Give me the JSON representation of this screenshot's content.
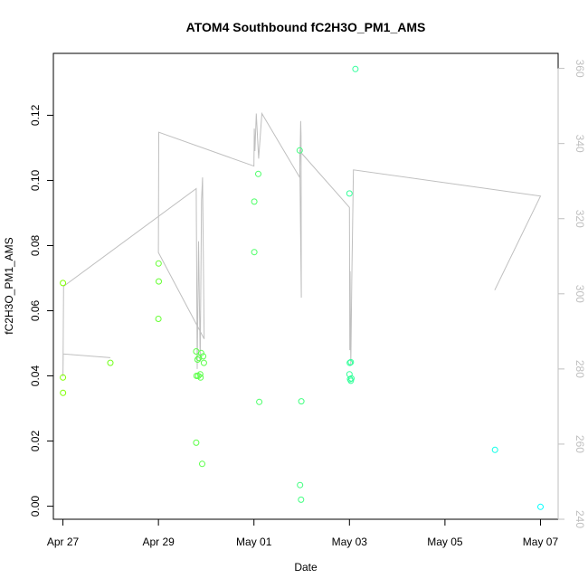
{
  "chart_data": {
    "type": "scatter",
    "title": "ATOM4 Southbound fC2H3O_PM1_AMS",
    "xlabel": "Date",
    "ylabel": "fC2H3O_PM1_AMS",
    "xlim": [
      26.8,
      7.37
    ],
    "x_ticks": [
      {
        "day": 27,
        "label": "Apr 27"
      },
      {
        "day": 29,
        "label": "Apr 29"
      },
      {
        "day": 31,
        "label": "May 01"
      },
      {
        "day": 33,
        "label": "May 03"
      },
      {
        "day": 35,
        "label": "May 05"
      },
      {
        "day": 37,
        "label": "May 07"
      }
    ],
    "ylim": [
      -0.004,
      0.139
    ],
    "y_ticks": [
      0.0,
      0.02,
      0.04,
      0.06,
      0.08,
      0.1,
      0.12
    ],
    "y_tick_labels": [
      "0.00",
      "0.02",
      "0.04",
      "0.06",
      "0.08",
      "0.10",
      "0.12"
    ],
    "y2lim": [
      240,
      364
    ],
    "y2_ticks": [
      240,
      260,
      280,
      300,
      320,
      340,
      360
    ],
    "grid": false,
    "colors": {
      "points_start": "#7fff00",
      "points_end": "#00ffff",
      "line": "#bfbfbf",
      "axis": "#000000",
      "right_axis": "#bfbfbf"
    },
    "points": [
      {
        "x": "Apr 27 00:00",
        "y": 0.0685
      },
      {
        "x": "Apr 27 00:00",
        "y": 0.0395
      },
      {
        "x": "Apr 27 00:05",
        "y": 0.0348
      },
      {
        "x": "Apr 27 23:50",
        "y": 0.044
      },
      {
        "x": "Apr 29 00:05",
        "y": 0.0745
      },
      {
        "x": "Apr 29 00:10",
        "y": 0.069
      },
      {
        "x": "Apr 29 00:00",
        "y": 0.0575
      },
      {
        "x": "Apr 29 19:00",
        "y": 0.0475
      },
      {
        "x": "Apr 29 19:10",
        "y": 0.04
      },
      {
        "x": "Apr 29 19:40",
        "y": 0.045
      },
      {
        "x": "Apr 29 20:20",
        "y": 0.0455
      },
      {
        "x": "Apr 29 21:00",
        "y": 0.0405
      },
      {
        "x": "Apr 29 20:00",
        "y": 0.04
      },
      {
        "x": "Apr 29 21:10",
        "y": 0.0395
      },
      {
        "x": "Apr 29 21:30",
        "y": 0.047
      },
      {
        "x": "Apr 29 22:30",
        "y": 0.046
      },
      {
        "x": "Apr 29 22:50",
        "y": 0.044
      },
      {
        "x": "Apr 29 19:00",
        "y": 0.0195
      },
      {
        "x": "Apr 29 22:00",
        "y": 0.013
      },
      {
        "x": "May 01 00:10",
        "y": 0.0935
      },
      {
        "x": "May 01 00:10",
        "y": 0.078
      },
      {
        "x": "May 01 02:10",
        "y": 0.102
      },
      {
        "x": "May 01 02:40",
        "y": 0.032
      },
      {
        "x": "May 01 23:00",
        "y": 0.1092
      },
      {
        "x": "May 01 23:10",
        "y": 0.0065
      },
      {
        "x": "May 01 23:40",
        "y": 0.002
      },
      {
        "x": "May 01 23:50",
        "y": 0.0322
      },
      {
        "x": "May 03 00:00",
        "y": 0.096
      },
      {
        "x": "May 03 00:10",
        "y": 0.044
      },
      {
        "x": "May 03 00:40",
        "y": 0.0442
      },
      {
        "x": "May 03 00:00",
        "y": 0.0405
      },
      {
        "x": "May 03 00:20",
        "y": 0.039
      },
      {
        "x": "May 03 00:40",
        "y": 0.0385
      },
      {
        "x": "May 03 01:00",
        "y": 0.0392
      },
      {
        "x": "May 03 03:00",
        "y": 0.1342
      },
      {
        "x": "May 06 01:10",
        "y": 0.0173
      },
      {
        "x": "May 07 00:00",
        "y": -0.0002
      }
    ],
    "line_series": [
      {
        "x": "Apr 27 00:00",
        "y2": 278
      },
      {
        "x": "Apr 27 00:10",
        "y2": 284
      },
      {
        "x": "Apr 27 23:50",
        "y2": 283
      },
      {
        "x": "Apr 27 00:10",
        "y2": 284
      },
      {
        "x": "Apr 27 00:00",
        "y2": 278
      },
      {
        "x": "Apr 27 00:20",
        "y2": 302
      },
      {
        "x": "Apr 29 19:00",
        "y2": 328
      },
      {
        "x": "Apr 29 19:30",
        "y2": 280
      },
      {
        "x": "Apr 29 20:10",
        "y2": 314
      },
      {
        "x": "Apr 29 21:00",
        "y2": 282
      },
      {
        "x": "Apr 29 21:40",
        "y2": 325
      },
      {
        "x": "Apr 29 22:10",
        "y2": 331
      },
      {
        "x": "Apr 29 23:00",
        "y2": 288
      },
      {
        "x": "Apr 29 00:00",
        "y2": 311
      },
      {
        "x": "Apr 29 00:10",
        "y2": 343
      },
      {
        "x": "May 01 00:00",
        "y2": 334
      },
      {
        "x": "May 01 00:10",
        "y2": 344
      },
      {
        "x": "May 01 00:30",
        "y2": 338
      },
      {
        "x": "May 01 01:10",
        "y2": 348
      },
      {
        "x": "May 01 02:20",
        "y2": 336
      },
      {
        "x": "May 01 04:00",
        "y2": 348
      },
      {
        "x": "May 01 23:00",
        "y2": 331
      },
      {
        "x": "May 01 23:30",
        "y2": 346
      },
      {
        "x": "May 01 23:40",
        "y2": 342
      },
      {
        "x": "May 01 23:50",
        "y2": 299
      },
      {
        "x": "May 01 23:00",
        "y2": 338
      },
      {
        "x": "May 03 00:00",
        "y2": 323
      },
      {
        "x": "May 03 00:10",
        "y2": 285
      },
      {
        "x": "May 03 00:20",
        "y2": 306
      },
      {
        "x": "May 03 00:40",
        "y2": 281
      },
      {
        "x": "May 03 01:10",
        "y2": 304
      },
      {
        "x": "May 03 02:00",
        "y2": 333
      },
      {
        "x": "May 07 00:00",
        "y2": 326
      },
      {
        "x": "May 06 01:00",
        "y2": 301
      }
    ]
  }
}
